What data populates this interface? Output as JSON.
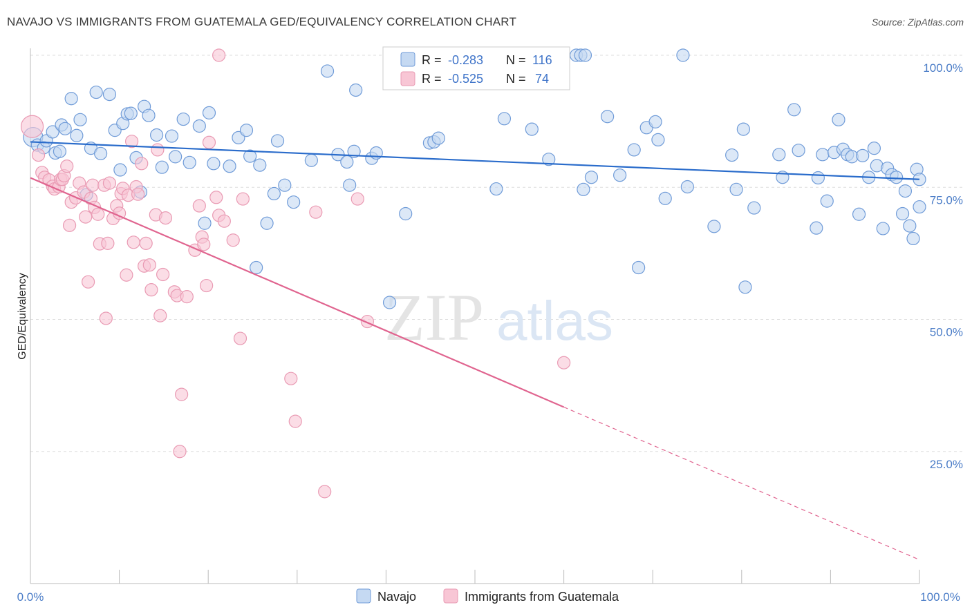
{
  "title": "NAVAJO VS IMMIGRANTS FROM GUATEMALA GED/EQUIVALENCY CORRELATION CHART",
  "source": "Source: ZipAtlas.com",
  "watermark": {
    "zip": "ZIP",
    "atlas": "atlas"
  },
  "colors": {
    "navajo_fill": "#c5d9f2",
    "navajo_stroke": "#6f9bd8",
    "navajo_line": "#2a6ccb",
    "guat_fill": "#f8c6d5",
    "guat_stroke": "#e99ab3",
    "guat_line": "#e0648f",
    "grid": "#dddddd",
    "axis_label": "#4a7cc7"
  },
  "legend": {
    "rows": [
      {
        "r_label": "R = ",
        "r_value": "-0.283",
        "n_label": "N = ",
        "n_value": "116"
      },
      {
        "r_label": "R = ",
        "r_value": "-0.525",
        "n_label": "N = ",
        "n_value": "74"
      }
    ]
  },
  "chart_data": {
    "type": "scatter",
    "ylabel": "GED/Equivalency",
    "xlim": [
      0,
      100
    ],
    "ylim": [
      0,
      100
    ],
    "x_tick_labels": [
      "0.0%",
      "100.0%"
    ],
    "y_ticks": [
      25,
      50,
      75,
      100
    ],
    "y_tick_labels": [
      "25.0%",
      "50.0%",
      "75.0%",
      "100.0%"
    ],
    "grid": true,
    "legend_placement": "top-center",
    "series": [
      {
        "name": "Navajo",
        "r": -0.283,
        "n": 116,
        "trend": {
          "x0": 0,
          "y0": 83.6,
          "x1": 100,
          "y1": 76.5
        },
        "points": [
          [
            0.3,
            84.5
          ],
          [
            0.8,
            83
          ],
          [
            1.5,
            82.5
          ],
          [
            1.8,
            83.8
          ],
          [
            2.5,
            85.5
          ],
          [
            2.8,
            81.5
          ],
          [
            3.3,
            81.8
          ],
          [
            3.5,
            86.8
          ],
          [
            3.9,
            86.1
          ],
          [
            4.6,
            91.8
          ],
          [
            5.2,
            84.8
          ],
          [
            5.6,
            87.8
          ],
          [
            6.3,
            73.6
          ],
          [
            6.8,
            82.4
          ],
          [
            7.4,
            93
          ],
          [
            7.9,
            81.4
          ],
          [
            8.9,
            92.6
          ],
          [
            9.5,
            85.8
          ],
          [
            10.1,
            78.3
          ],
          [
            10.4,
            87.1
          ],
          [
            10.9,
            88.9
          ],
          [
            11.3,
            89
          ],
          [
            11.9,
            80.6
          ],
          [
            12.4,
            74.1
          ],
          [
            12.8,
            90.3
          ],
          [
            13.3,
            88.6
          ],
          [
            14.2,
            84.9
          ],
          [
            14.8,
            78.8
          ],
          [
            15.9,
            84.7
          ],
          [
            16.3,
            80.8
          ],
          [
            17.2,
            87.9
          ],
          [
            17.9,
            79.7
          ],
          [
            19,
            86.6
          ],
          [
            19.6,
            68.2
          ],
          [
            20.1,
            89.1
          ],
          [
            20.6,
            79.5
          ],
          [
            22.4,
            79
          ],
          [
            23.4,
            84.4
          ],
          [
            24.3,
            85.8
          ],
          [
            24.7,
            80.9
          ],
          [
            25.4,
            59.8
          ],
          [
            25.8,
            79.2
          ],
          [
            26.6,
            68.2
          ],
          [
            27.4,
            73.8
          ],
          [
            27.8,
            83.8
          ],
          [
            28.6,
            75.4
          ],
          [
            29.6,
            72.2
          ],
          [
            31.6,
            80.1
          ],
          [
            33.4,
            97
          ],
          [
            34.6,
            81.2
          ],
          [
            35.6,
            79.8
          ],
          [
            35.9,
            75.4
          ],
          [
            36.4,
            81.8
          ],
          [
            36.6,
            93.4
          ],
          [
            38.4,
            80.5
          ],
          [
            38.9,
            81.5
          ],
          [
            40.4,
            53.2
          ],
          [
            42.2,
            70
          ],
          [
            44.9,
            83.4
          ],
          [
            45.4,
            83.6
          ],
          [
            45.9,
            84.3
          ],
          [
            52.4,
            74.7
          ],
          [
            52.8,
            100
          ],
          [
            53.3,
            88
          ],
          [
            56.4,
            86
          ],
          [
            58.3,
            80.3
          ],
          [
            61.4,
            100
          ],
          [
            61.9,
            100
          ],
          [
            62.2,
            74.6
          ],
          [
            63.1,
            76.9
          ],
          [
            64.9,
            88.4
          ],
          [
            66.3,
            77.3
          ],
          [
            67.9,
            82.1
          ],
          [
            68.4,
            59.8
          ],
          [
            69.3,
            86.3
          ],
          [
            70.3,
            87.4
          ],
          [
            70.6,
            84
          ],
          [
            71.4,
            72.9
          ],
          [
            73.4,
            100
          ],
          [
            73.9,
            75.1
          ],
          [
            76.9,
            67.6
          ],
          [
            78.9,
            81.1
          ],
          [
            79.4,
            74.6
          ],
          [
            80.2,
            86
          ],
          [
            80.4,
            56.1
          ],
          [
            81.4,
            71.1
          ],
          [
            84.2,
            81.2
          ],
          [
            84.6,
            76.9
          ],
          [
            85.9,
            89.7
          ],
          [
            86.4,
            82
          ],
          [
            88.4,
            67.3
          ],
          [
            88.6,
            76.8
          ],
          [
            89.1,
            81.2
          ],
          [
            89.6,
            72.4
          ],
          [
            90.4,
            81.6
          ],
          [
            90.9,
            87.8
          ],
          [
            91.4,
            82.2
          ],
          [
            91.9,
            81.2
          ],
          [
            92.4,
            80.8
          ],
          [
            93.2,
            69.9
          ],
          [
            93.6,
            81
          ],
          [
            94.3,
            76.9
          ],
          [
            94.9,
            82.4
          ],
          [
            95.2,
            79.1
          ],
          [
            95.9,
            67.2
          ],
          [
            96.4,
            78.6
          ],
          [
            96.9,
            77.4
          ],
          [
            97.4,
            76.9
          ],
          [
            98.1,
            70
          ],
          [
            98.4,
            74.3
          ],
          [
            98.9,
            67.7
          ],
          [
            99.3,
            65.3
          ],
          [
            99.7,
            78.4
          ],
          [
            100,
            71.3
          ],
          [
            100,
            76.5
          ],
          [
            62.4,
            100
          ]
        ]
      },
      {
        "name": "Immigrants from Guatemala",
        "r": -0.525,
        "n": 74,
        "trend": {
          "x0": 0,
          "y0": 76.8,
          "x1": 60,
          "y1": 33.4,
          "dash_x1": 100,
          "dash_y1": 4.5
        },
        "points": [
          [
            0.2,
            86.5
          ],
          [
            0.9,
            81.1
          ],
          [
            1.3,
            77.8
          ],
          [
            1.6,
            76.9
          ],
          [
            2.1,
            76.4
          ],
          [
            2.5,
            75.2
          ],
          [
            2.7,
            74.7
          ],
          [
            3.2,
            75.1
          ],
          [
            3.4,
            76.5
          ],
          [
            3.6,
            76.5
          ],
          [
            3.8,
            77.2
          ],
          [
            4.1,
            79
          ],
          [
            4.4,
            67.8
          ],
          [
            4.6,
            72.2
          ],
          [
            5.1,
            73
          ],
          [
            5.5,
            75.8
          ],
          [
            6,
            74.1
          ],
          [
            6.2,
            69.4
          ],
          [
            6.5,
            57.1
          ],
          [
            6.8,
            72.9
          ],
          [
            7,
            75.4
          ],
          [
            7.2,
            71.2
          ],
          [
            7.6,
            69.9
          ],
          [
            7.8,
            64.3
          ],
          [
            8.3,
            75.4
          ],
          [
            8.5,
            50.2
          ],
          [
            8.7,
            64.4
          ],
          [
            8.9,
            75.8
          ],
          [
            9.3,
            69.1
          ],
          [
            9.7,
            71.5
          ],
          [
            10,
            70.1
          ],
          [
            10.2,
            73.8
          ],
          [
            10.4,
            74.8
          ],
          [
            10.8,
            58.4
          ],
          [
            11,
            73.5
          ],
          [
            11.4,
            83.7
          ],
          [
            11.6,
            64.6
          ],
          [
            11.9,
            75.1
          ],
          [
            12.1,
            73.7
          ],
          [
            12.5,
            79.5
          ],
          [
            12.8,
            60.1
          ],
          [
            13,
            64.4
          ],
          [
            13.4,
            60.3
          ],
          [
            13.6,
            55.6
          ],
          [
            14.1,
            69.8
          ],
          [
            14.3,
            82.1
          ],
          [
            14.6,
            50.7
          ],
          [
            14.9,
            58.5
          ],
          [
            15.2,
            69.2
          ],
          [
            16.2,
            55.2
          ],
          [
            16.5,
            54.5
          ],
          [
            16.8,
            25
          ],
          [
            17,
            35.8
          ],
          [
            17.6,
            54.3
          ],
          [
            18.5,
            63.1
          ],
          [
            19,
            71.5
          ],
          [
            19.3,
            65.6
          ],
          [
            19.5,
            64.2
          ],
          [
            19.8,
            56.4
          ],
          [
            20.1,
            83.5
          ],
          [
            20.9,
            73.1
          ],
          [
            21.2,
            69.7
          ],
          [
            21.8,
            68.6
          ],
          [
            22.8,
            65
          ],
          [
            23.6,
            46.4
          ],
          [
            23.9,
            72.8
          ],
          [
            29.3,
            38.8
          ],
          [
            29.8,
            30.7
          ],
          [
            32.1,
            70.3
          ],
          [
            33.1,
            17.4
          ],
          [
            36.8,
            72.8
          ],
          [
            37.9,
            49.6
          ],
          [
            60,
            41.8
          ],
          [
            21.2,
            100
          ]
        ]
      }
    ]
  },
  "bottom_legend": [
    "Navajo",
    "Immigrants from Guatemala"
  ]
}
